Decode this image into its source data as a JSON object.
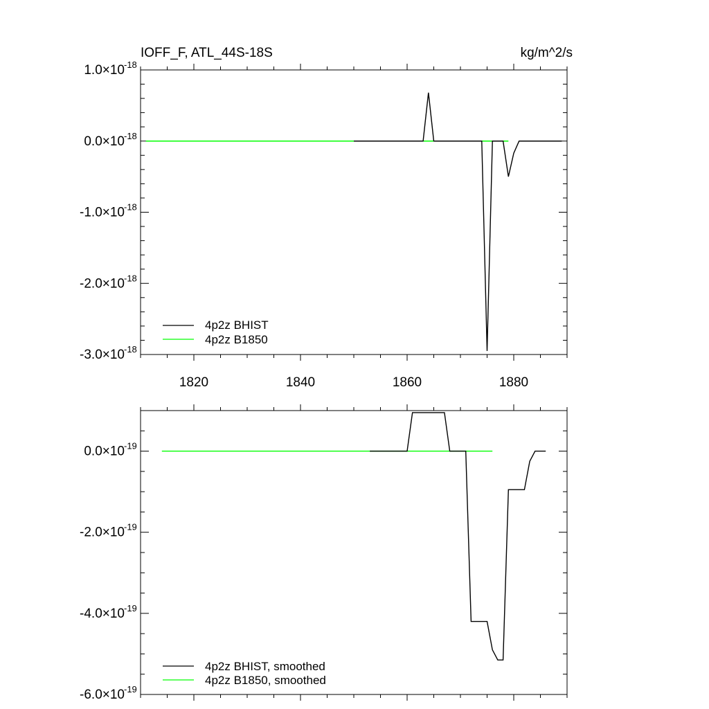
{
  "chart_data": [
    {
      "type": "line",
      "title_left": "IOFF_F, ATL_44S-18S",
      "title_right": "kg/m^2/s",
      "exponent": "-18",
      "xlim": [
        1810,
        1890
      ],
      "ylim": [
        -3.0,
        1.0
      ],
      "xticks": [
        1820,
        1840,
        1860,
        1880
      ],
      "xtick_labels": [
        "1820",
        "1840",
        "1860",
        "1880"
      ],
      "yticks": [
        1.0,
        0.0,
        -1.0,
        -2.0,
        -3.0
      ],
      "ytick_labels": [
        "1.0",
        "0.0",
        "-1.0",
        "-2.0",
        "-3.0"
      ],
      "legend_position": "bottom-left",
      "series": [
        {
          "name": "4p2z BHIST",
          "color": "#000000",
          "x": [
            1850,
            1851,
            1852,
            1853,
            1854,
            1855,
            1856,
            1857,
            1858,
            1859,
            1860,
            1861,
            1862,
            1863,
            1864,
            1865,
            1866,
            1867,
            1868,
            1869,
            1870,
            1871,
            1872,
            1873,
            1874,
            1875,
            1876,
            1877,
            1878,
            1879,
            1880,
            1881,
            1882,
            1883,
            1884,
            1885,
            1886,
            1887,
            1888,
            1889
          ],
          "y": [
            0,
            0,
            0,
            0,
            0,
            0,
            0,
            0,
            0,
            0,
            0,
            0,
            0,
            0,
            0.68,
            0,
            0,
            0,
            0,
            0,
            0,
            0,
            0,
            0,
            0,
            -2.95,
            0,
            0,
            0,
            -0.5,
            -0.17,
            0,
            0,
            0,
            0,
            0,
            0,
            0,
            0,
            0
          ]
        },
        {
          "name": "4p2z B1850",
          "color": "#00ff00",
          "x": [
            1811,
            1879
          ],
          "y": [
            0,
            0
          ]
        }
      ]
    },
    {
      "type": "line",
      "exponent": "-19",
      "xlim": [
        1810,
        1890
      ],
      "ylim": [
        -6.0,
        1.0
      ],
      "xticks": [
        1820,
        1840,
        1860,
        1880
      ],
      "yticks": [
        0.0,
        -2.0,
        -4.0,
        -6.0
      ],
      "ytick_labels": [
        "0.0",
        "-2.0",
        "-4.0",
        "-6.0"
      ],
      "legend_position": "bottom-left",
      "series": [
        {
          "name": "4p2z BHIST, smoothed",
          "color": "#000000",
          "x": [
            1853,
            1860,
            1861,
            1867,
            1868,
            1871,
            1872,
            1875,
            1876,
            1877,
            1878,
            1879,
            1882,
            1883,
            1884,
            1886
          ],
          "y": [
            0,
            0,
            0.95,
            0.95,
            0,
            0,
            -4.2,
            -4.2,
            -4.9,
            -5.15,
            -5.15,
            -0.95,
            -0.95,
            -0.25,
            0,
            0
          ]
        },
        {
          "name": "4p2z B1850, smoothed",
          "color": "#00ff00",
          "x": [
            1814,
            1876
          ],
          "y": [
            0,
            0
          ]
        }
      ]
    }
  ]
}
